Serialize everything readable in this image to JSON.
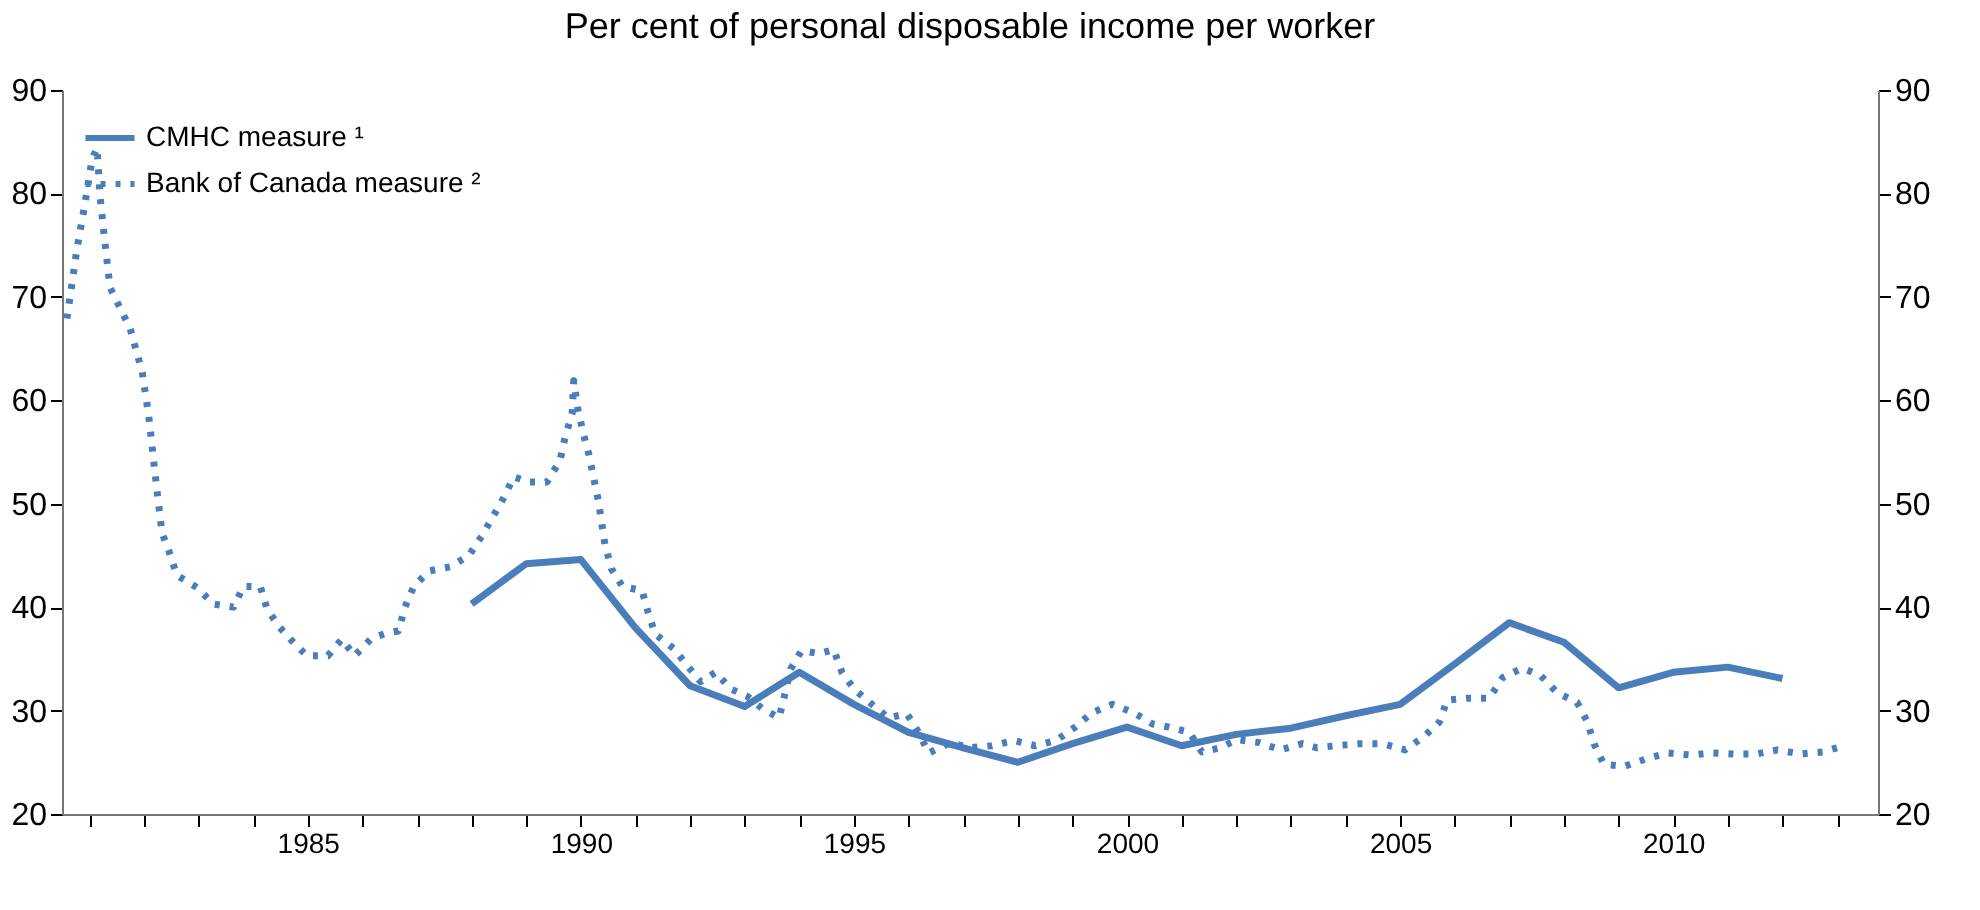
{
  "chart_data": {
    "type": "line",
    "title": "Per cent of personal disposable income per worker",
    "series": [
      {
        "name": "CMHC measure ¹",
        "color": "#4a7ebb",
        "line_style": "solid",
        "x": [
          1988,
          1989,
          1990,
          1991,
          1992,
          1993,
          1994,
          1995,
          1996,
          1997,
          1998,
          1999,
          2000,
          2001,
          2002,
          2003,
          2004,
          2005,
          2006,
          2007,
          2008,
          2009,
          2010,
          2011,
          2012
        ],
        "values": [
          40.3,
          44.2,
          44.6,
          38.0,
          32.4,
          30.4,
          33.7,
          30.6,
          27.9,
          26.4,
          25.0,
          26.8,
          28.4,
          26.6,
          27.7,
          28.3,
          29.5,
          30.6,
          34.5,
          38.5,
          36.6,
          32.2,
          33.7,
          34.2,
          33.1
        ]
      },
      {
        "name": "Bank of Canada measure ²",
        "color": "#4a7ebb",
        "line_style": "dotted",
        "x": [
          1980.59,
          1980.77,
          1980.92,
          1981.05,
          1981.14,
          1981.2,
          1981.28,
          1981.38,
          1981.75,
          1981.97,
          1982.09,
          1982.23,
          1982.33,
          1982.48,
          1982.6,
          1982.97,
          1983.27,
          1983.64,
          1983.82,
          1984.13,
          1984.25,
          1984.46,
          1984.7,
          1984.98,
          1985.37,
          1985.62,
          1985.86,
          1986.17,
          1986.45,
          1986.66,
          1986.78,
          1986.94,
          1987.22,
          1987.61,
          1987.95,
          1988.19,
          1988.59,
          1988.77,
          1989.05,
          1989.38,
          1989.62,
          1989.71,
          1989.84,
          1989.87,
          1989.95,
          1990.05,
          1990.15,
          1990.23,
          1990.32,
          1990.44,
          1990.56,
          1990.76,
          1991.12,
          1991.23,
          1991.36,
          1991.7,
          1991.94,
          1992.19,
          1992.47,
          1992.74,
          1993.04,
          1993.32,
          1993.63,
          1993.74,
          1993.84,
          1994.04,
          1994.36,
          1994.63,
          1994.78,
          1995.0,
          1995.33,
          1995.63,
          1995.97,
          1996.18,
          1996.37,
          1996.77,
          1997.11,
          1997.52,
          1997.93,
          1998.32,
          1998.7,
          1999.05,
          1999.36,
          1999.73,
          2000.12,
          2000.47,
          2000.77,
          2001.14,
          2001.37,
          2001.71,
          2002.01,
          2002.42,
          2002.81,
          2003.21,
          2003.48,
          2003.82,
          2004.25,
          2004.68,
          2005.09,
          2005.44,
          2005.72,
          2005.86,
          2006.23,
          2006.63,
          2006.88,
          2007.24,
          2007.57,
          2007.88,
          2008.24,
          2008.43,
          2008.55,
          2008.73,
          2009.1,
          2009.49,
          2009.89,
          2010.32,
          2010.71,
          2011.11,
          2011.52,
          2011.91,
          2012.33,
          2012.74,
          2013.13
        ],
        "values": [
          67.9,
          74.5,
          79.0,
          83.3,
          84.4,
          79.6,
          75.5,
          70.9,
          66.9,
          62.7,
          58.4,
          51.7,
          47.2,
          45.1,
          43.1,
          41.9,
          40.3,
          40.0,
          42.0,
          42.0,
          39.9,
          38.2,
          36.8,
          35.3,
          35.3,
          36.9,
          35.3,
          37.0,
          37.5,
          37.7,
          40.0,
          42.0,
          43.5,
          43.9,
          45.0,
          46.9,
          50.6,
          52.6,
          52.1,
          52.1,
          54.2,
          56.4,
          58.7,
          61.9,
          59.0,
          56.7,
          54.7,
          52.6,
          50.3,
          46.1,
          43.7,
          42.0,
          41.6,
          39.5,
          37.4,
          36.0,
          34.4,
          32.8,
          33.7,
          32.1,
          31.4,
          30.2,
          29.3,
          31.7,
          34.0,
          35.8,
          35.5,
          35.9,
          33.7,
          32.1,
          30.6,
          29.3,
          29.7,
          27.9,
          25.9,
          26.9,
          26.4,
          26.6,
          27.1,
          26.6,
          27.1,
          28.4,
          29.8,
          30.6,
          29.8,
          28.7,
          28.4,
          27.9,
          26.0,
          26.4,
          27.2,
          26.9,
          26.2,
          26.8,
          26.4,
          26.6,
          26.8,
          26.8,
          26.2,
          27.5,
          28.9,
          31.0,
          31.2,
          31.2,
          33.2,
          34.1,
          33.4,
          31.7,
          30.8,
          28.9,
          26.8,
          24.8,
          24.6,
          25.3,
          25.9,
          25.7,
          25.9,
          25.8,
          25.8,
          26.2,
          25.8,
          26.0,
          26.6
        ]
      }
    ],
    "xlim": [
      1980.5,
      2013.75
    ],
    "xticks": [
      {
        "value": 1981,
        "label": null
      },
      {
        "value": 1982,
        "label": null
      },
      {
        "value": 1983,
        "label": null
      },
      {
        "value": 1984,
        "label": null
      },
      1985,
      {
        "value": 1986,
        "label": null
      },
      {
        "value": 1987,
        "label": null
      },
      {
        "value": 1988,
        "label": null
      },
      {
        "value": 1989,
        "label": null
      },
      1990,
      {
        "value": 1991,
        "label": null
      },
      {
        "value": 1992,
        "label": null
      },
      {
        "value": 1993,
        "label": null
      },
      {
        "value": 1994,
        "label": null
      },
      1995,
      {
        "value": 1996,
        "label": null
      },
      {
        "value": 1997,
        "label": null
      },
      {
        "value": 1998,
        "label": null
      },
      {
        "value": 1999,
        "label": null
      },
      2000,
      {
        "value": 2001,
        "label": null
      },
      {
        "value": 2002,
        "label": null
      },
      {
        "value": 2003,
        "label": null
      },
      {
        "value": 2004,
        "label": null
      },
      2005,
      {
        "value": 2006,
        "label": null
      },
      {
        "value": 2007,
        "label": null
      },
      {
        "value": 2008,
        "label": null
      },
      {
        "value": 2009,
        "label": null
      },
      2010,
      {
        "value": 2011,
        "label": null
      },
      {
        "value": 2012,
        "label": null
      },
      {
        "value": 2013,
        "label": null
      }
    ],
    "ylim": [
      20,
      90
    ],
    "yticks": [
      20,
      30,
      40,
      50,
      60,
      70,
      80,
      90
    ],
    "y2lim": [
      20,
      90
    ],
    "y2ticks": [
      20,
      30,
      40,
      50,
      60,
      70,
      80,
      90
    ],
    "grid": false,
    "legend": "top left"
  }
}
